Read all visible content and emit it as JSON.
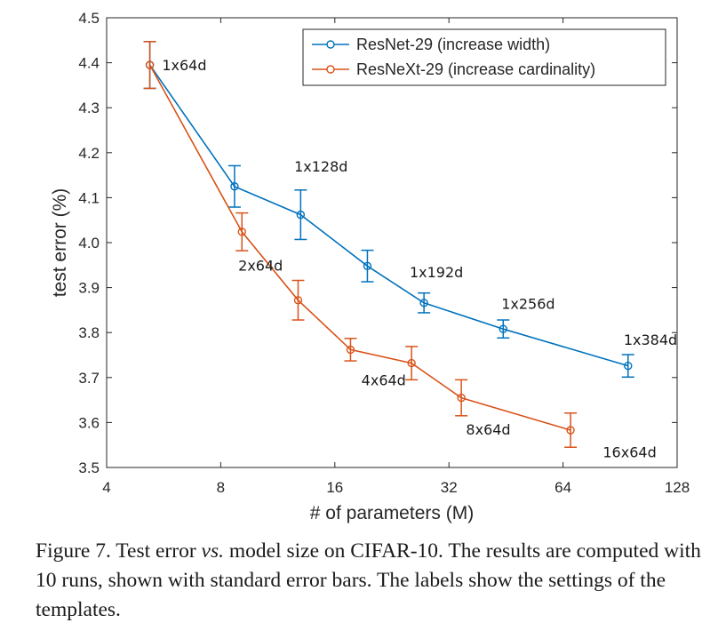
{
  "chart_data": {
    "type": "line",
    "xlabel": "# of parameters (M)",
    "ylabel": "test error (%)",
    "xscale": "log2",
    "xlim": [
      4,
      128
    ],
    "ylim": [
      3.5,
      4.5
    ],
    "xticks": [
      4,
      8,
      16,
      32,
      64,
      128
    ],
    "xtick_labels": [
      "4",
      "8",
      "16",
      "32",
      "64",
      "128"
    ],
    "yticks": [
      3.5,
      3.6,
      3.7,
      3.8,
      3.9,
      4.0,
      4.1,
      4.2,
      4.3,
      4.4,
      4.5
    ],
    "ytick_labels": [
      "3.5",
      "3.6",
      "3.7",
      "3.8",
      "3.9",
      "4.0",
      "4.1",
      "4.2",
      "4.3",
      "4.4",
      "4.5"
    ],
    "grid": false,
    "legend_position": "top-right",
    "series": [
      {
        "name": "ResNet-29 (increase width)",
        "color": "#0072BD",
        "x": [
          5.2,
          8.7,
          13.0,
          19.5,
          27.5,
          44.5,
          95.0
        ],
        "y": [
          4.395,
          4.125,
          4.062,
          3.948,
          3.866,
          3.808,
          3.726
        ],
        "err": [
          0.052,
          0.046,
          0.055,
          0.035,
          0.022,
          0.02,
          0.025
        ]
      },
      {
        "name": "ResNeXt-29 (increase cardinality)",
        "color": "#D95319",
        "x": [
          5.2,
          9.1,
          12.8,
          17.6,
          25.5,
          34.5,
          67.0
        ],
        "y": [
          4.395,
          4.024,
          3.872,
          3.762,
          3.732,
          3.655,
          3.583
        ],
        "err": [
          0.052,
          0.042,
          0.044,
          0.025,
          0.037,
          0.04,
          0.038
        ]
      }
    ],
    "annotations": [
      {
        "text": "1x64d",
        "x": 5.6,
        "y": 4.395
      },
      {
        "text": "1x128d",
        "x": 12.5,
        "y": 4.17
      },
      {
        "text": "1x192d",
        "x": 25.2,
        "y": 3.935
      },
      {
        "text": "1x256d",
        "x": 44.0,
        "y": 3.865
      },
      {
        "text": "1x384d",
        "x": 92.5,
        "y": 3.785
      },
      {
        "text": "2x64d",
        "x": 8.9,
        "y": 3.95
      },
      {
        "text": "4x64d",
        "x": 18.8,
        "y": 3.695
      },
      {
        "text": "8x64d",
        "x": 35.5,
        "y": 3.585
      },
      {
        "text": "16x64d",
        "x": 81.5,
        "y": 3.535
      }
    ]
  },
  "caption": {
    "part1": "Figure 7. Test error ",
    "vs": "vs.",
    "part2": " model size on CIFAR-10.  The results are computed with 10 runs, shown with standard error bars. The labels show the settings of the templates."
  }
}
